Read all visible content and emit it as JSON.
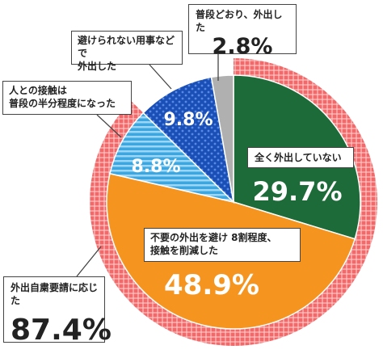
{
  "chart_data": {
    "type": "pie",
    "inner_series": [
      {
        "label_lines": [
          "全く外出していない"
        ],
        "value_text": "29.7%",
        "value": 29.7,
        "color": "#1e6b3a",
        "pattern": "solid"
      },
      {
        "label_lines": [
          "不要の外出を避け 8割程度、",
          "接触を削減した"
        ],
        "value_text": "48.9%",
        "value": 48.9,
        "color": "#f5951f",
        "pattern": "solid"
      },
      {
        "label_lines": [
          "人との接触は",
          "普段の半分程度になった"
        ],
        "value_text": "8.8%",
        "value": 8.8,
        "color": "#3ba6e0",
        "pattern": "stripes"
      },
      {
        "label_lines": [
          "避けられない用事などで",
          "外出した"
        ],
        "value_text": "9.8%",
        "value": 9.8,
        "color": "#1a4fb8",
        "pattern": "dots"
      },
      {
        "label_lines": [
          "普段どおり、外出した"
        ],
        "value_text": "2.8%",
        "value": 2.8,
        "color": "#b0b0b0",
        "pattern": "solid"
      }
    ],
    "outer_ring": {
      "label": "外出自粛要請に応じた",
      "value_text": "87.4%",
      "value": 87.4,
      "color": "#ef6a6a"
    }
  }
}
